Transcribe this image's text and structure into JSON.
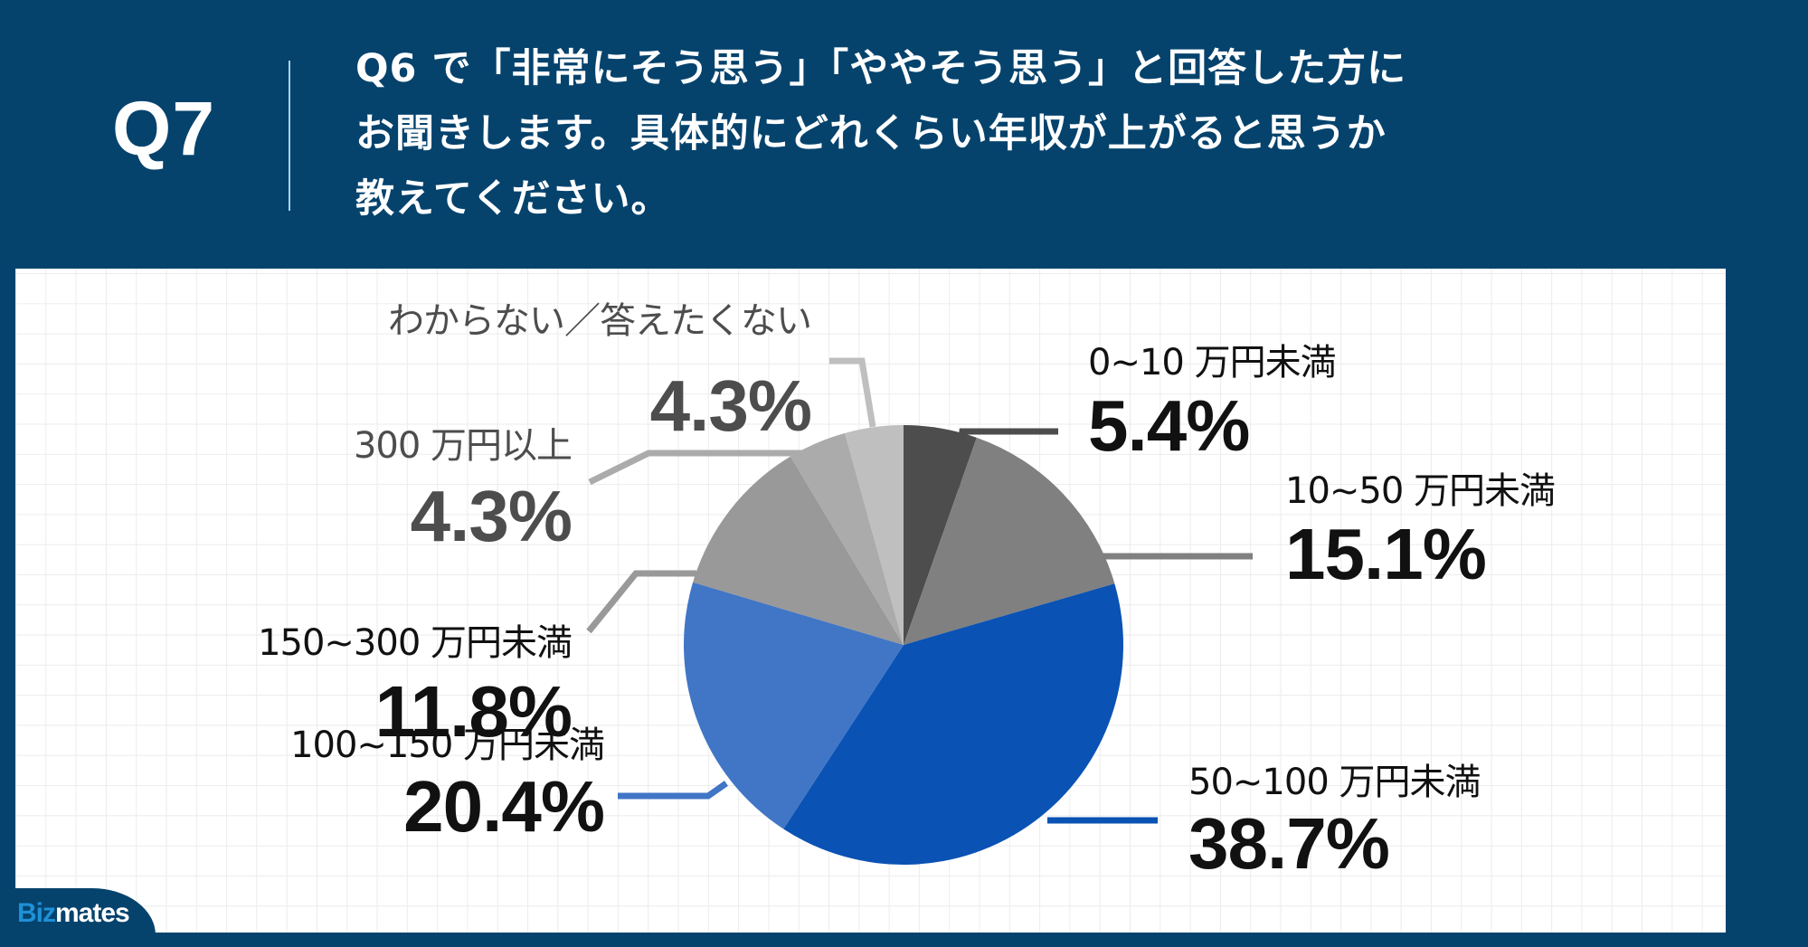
{
  "header": {
    "question_number": "Q7",
    "question_lines": [
      " Q6 で「非常にそう思う」「ややそう思う」と回答した方に",
      "お聞きします。具体的にどれくらい年収が上がると思うか",
      "教えてください。"
    ]
  },
  "colors": {
    "background": "#05436d",
    "divider": "#a9d3ef",
    "panel": "#ffffff",
    "grid": "#ececec"
  },
  "chart_data": {
    "type": "pie",
    "title": "Q6 で「非常にそう思う」「ややそう思う」と回答した方にお聞きします。具体的にどれくらい年収が上がると思うか教えてください。",
    "start_angle": "12 o'clock",
    "direction": "clockwise",
    "categories": [
      "0~10 万円未満",
      "10~50 万円未満",
      "50~100 万円未満",
      "100~150 万円未満",
      "150~300 万円未満",
      "300 万円以上",
      "わからない／答えたくない"
    ],
    "values": [
      5.4,
      15.1,
      38.7,
      20.4,
      11.8,
      4.3,
      4.3
    ],
    "value_labels": [
      "5.4%",
      "15.1%",
      "38.7%",
      "20.4%",
      "11.8%",
      "4.3%",
      "4.3%"
    ],
    "slice_colors": [
      "#4d4d4d",
      "#808080",
      "#0a52b4",
      "#4176c6",
      "#999999",
      "#ababab",
      "#bfbfbf"
    ],
    "label_text_colors": [
      "#111111",
      "#111111",
      "#111111",
      "#111111",
      "#111111",
      "#4d4d4d",
      "#4d4d4d"
    ],
    "legend": "none (direct labels with leader lines)"
  },
  "logo": {
    "part1": "Biz",
    "part2": "mates"
  }
}
